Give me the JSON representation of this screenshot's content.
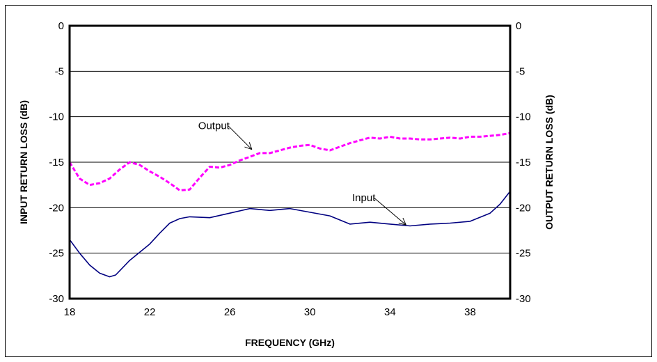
{
  "chart_data": {
    "type": "line",
    "title": "",
    "xlabel": "FREQUENCY (GHz)",
    "ylabel_left": "INPUT RETURN LOSS (dB)",
    "ylabel_right": "OUTPUT RETURN LOSS (dB)",
    "xlim": [
      18,
      40
    ],
    "ylim": [
      -30,
      0
    ],
    "x_ticks": [
      18,
      22,
      26,
      30,
      34,
      38
    ],
    "y_ticks": [
      0,
      -5,
      -10,
      -15,
      -20,
      -25,
      -30
    ],
    "grid": "horizontal",
    "series": [
      {
        "name": "Input",
        "color": "#000080",
        "style": "solid",
        "x": [
          18,
          18.5,
          19,
          19.5,
          20,
          20.3,
          21,
          21.5,
          22,
          22.5,
          23,
          23.5,
          24,
          25,
          26,
          27,
          28,
          29,
          30,
          31,
          32,
          33,
          34,
          35,
          36,
          37,
          38,
          39,
          39.5,
          40
        ],
        "y": [
          -23.5,
          -25,
          -26.3,
          -27.2,
          -27.6,
          -27.4,
          -25.8,
          -24.9,
          -24.0,
          -22.8,
          -21.7,
          -21.2,
          -21.0,
          -21.1,
          -20.6,
          -20.1,
          -20.3,
          -20.1,
          -20.5,
          -20.9,
          -21.8,
          -21.6,
          -21.8,
          -22.0,
          -21.8,
          -21.7,
          -21.5,
          -20.6,
          -19.6,
          -18.2
        ]
      },
      {
        "name": "Output",
        "color": "#ff00ff",
        "style": "dashed",
        "x": [
          18,
          18.5,
          19,
          19.5,
          20,
          20.5,
          21,
          21.5,
          22,
          22.5,
          23,
          23.5,
          24,
          24.5,
          25,
          25.5,
          26,
          26.5,
          27,
          27.5,
          28,
          28.5,
          29,
          29.5,
          30,
          30.5,
          31,
          31.5,
          32,
          32.5,
          33,
          33.5,
          34,
          34.5,
          35,
          35.5,
          36,
          36.5,
          37,
          37.5,
          38,
          38.5,
          39,
          39.5,
          40
        ],
        "y": [
          -15.0,
          -16.8,
          -17.5,
          -17.3,
          -16.8,
          -15.8,
          -15.0,
          -15.3,
          -16.0,
          -16.6,
          -17.3,
          -18.1,
          -18.0,
          -16.7,
          -15.5,
          -15.6,
          -15.3,
          -14.8,
          -14.4,
          -14.0,
          -14.0,
          -13.7,
          -13.4,
          -13.2,
          -13.1,
          -13.5,
          -13.7,
          -13.3,
          -12.9,
          -12.6,
          -12.3,
          -12.4,
          -12.2,
          -12.4,
          -12.4,
          -12.5,
          -12.5,
          -12.4,
          -12.3,
          -12.4,
          -12.2,
          -12.2,
          -12.1,
          -12.0,
          -11.8
        ]
      }
    ],
    "annotations": [
      {
        "text": "Output",
        "x": 27.1,
        "y": -13.6
      },
      {
        "text": "Input",
        "x": 34.8,
        "y": -21.9
      }
    ]
  }
}
